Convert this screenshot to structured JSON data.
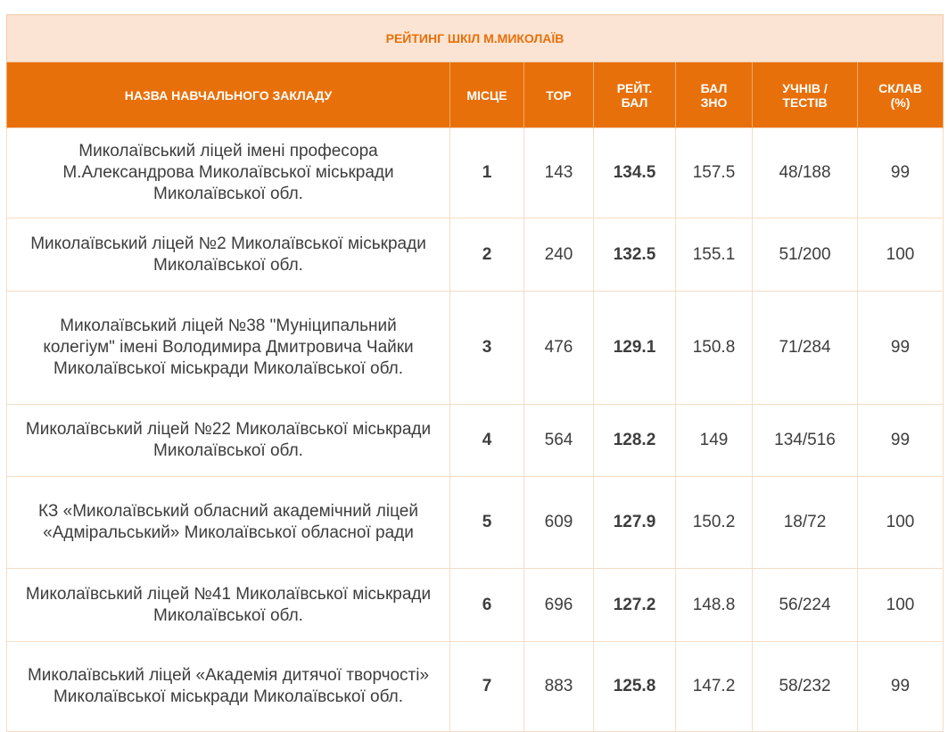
{
  "title": "РЕЙТИНГ ШКІЛ М.МИКОЛАЇВ",
  "columns": {
    "name": "НАЗВА НАВЧАЛЬНОГО ЗАКЛАДУ",
    "place": "МІСЦЕ",
    "top": "ТОР",
    "rating_l1": "РЕЙТ.",
    "rating_l2": "БАЛ",
    "zno_l1": "БАЛ",
    "zno_l2": "ЗНО",
    "students_l1": "УЧНІВ /",
    "students_l2": "ТЕСТІВ",
    "passed_l1": "СКЛАВ",
    "passed_l2": "(%)"
  },
  "rows": [
    {
      "name": "Миколаївський ліцей імені професора М.Александрова Миколаївської міськради Миколаївської обл.",
      "place": "1",
      "top": "143",
      "rating": "134.5",
      "zno": "157.5",
      "students": "48/188",
      "passed": "99"
    },
    {
      "name": "Миколаївський ліцей №2 Миколаївської міськради Миколаївської обл.",
      "place": "2",
      "top": "240",
      "rating": "132.5",
      "zno": "155.1",
      "students": "51/200",
      "passed": "100"
    },
    {
      "name": "Миколаївський ліцей №38 \"Муніципальний колегіум\" імені Володимира Дмитровича Чайки Миколаївської міськради Миколаївської обл.",
      "place": "3",
      "top": "476",
      "rating": "129.1",
      "zno": "150.8",
      "students": "71/284",
      "passed": "99"
    },
    {
      "name": "Миколаївський ліцей №22 Миколаївської міськради Миколаївської обл.",
      "place": "4",
      "top": "564",
      "rating": "128.2",
      "zno": "149",
      "students": "134/516",
      "passed": "99"
    },
    {
      "name": "КЗ «Миколаївський обласний академічний ліцей «Адміральський» Миколаївської обласної ради",
      "place": "5",
      "top": "609",
      "rating": "127.9",
      "zno": "150.2",
      "students": "18/72",
      "passed": "100"
    },
    {
      "name": "Миколаївський ліцей №41 Миколаївської міськради Миколаївської обл.",
      "place": "6",
      "top": "696",
      "rating": "127.2",
      "zno": "148.8",
      "students": "56/224",
      "passed": "100"
    },
    {
      "name": "Миколаївський ліцей «Академія дитячої творчості» Миколаївської міськради Миколаївської обл.",
      "place": "7",
      "top": "883",
      "rating": "125.8",
      "zno": "147.2",
      "students": "58/232",
      "passed": "99"
    }
  ]
}
